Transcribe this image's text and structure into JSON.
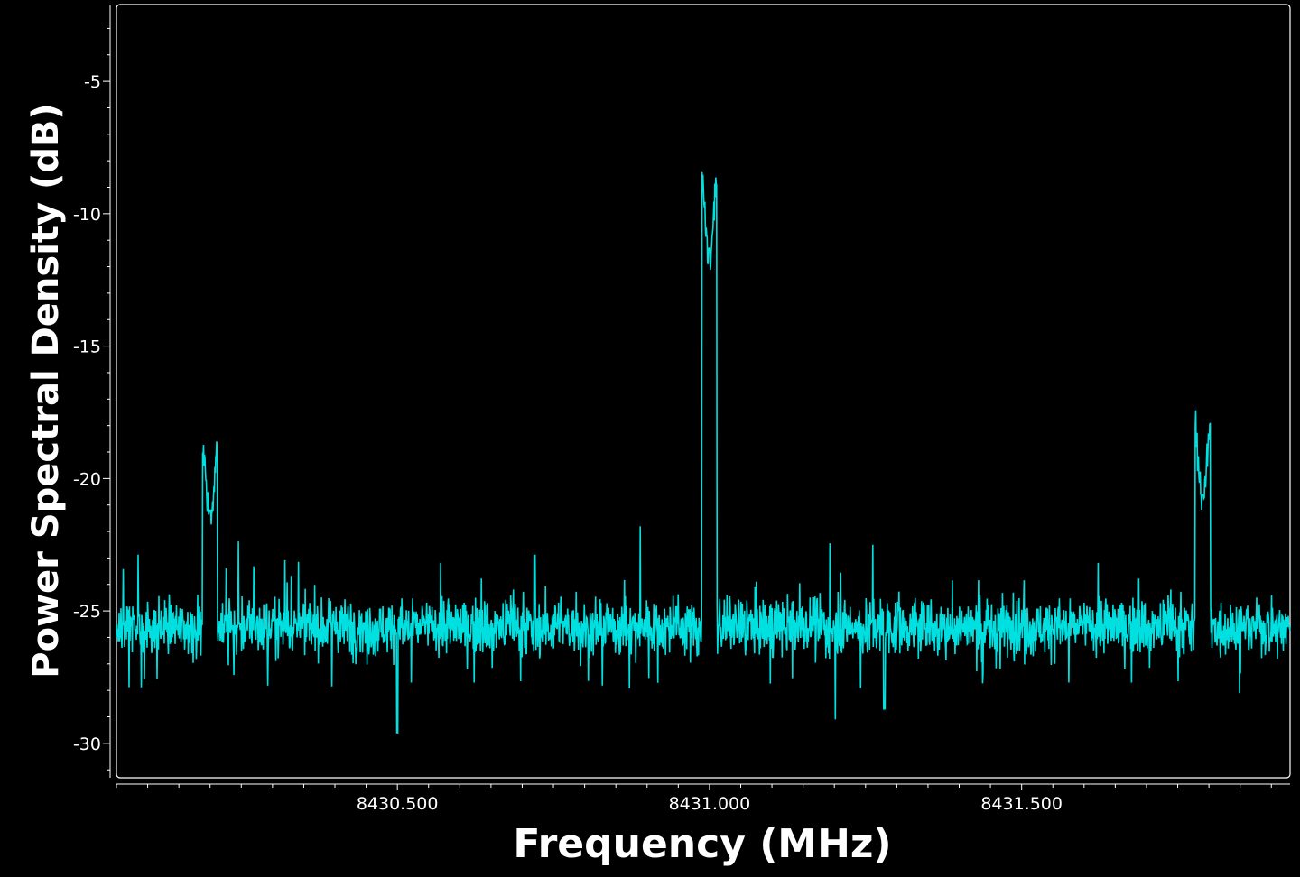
{
  "chart_data": {
    "type": "line",
    "title": "",
    "xlabel": "Frequency (MHz)",
    "ylabel": "Power Spectral Density (dB)",
    "xlim": [
      8430.05,
      8431.93
    ],
    "ylim": [
      -31.3,
      -2.1
    ],
    "x_ticks": [
      8430.5,
      8431.0,
      8431.5
    ],
    "x_tick_labels": [
      "8430.500",
      "8431.000",
      "8431.500"
    ],
    "y_ticks": [
      -30,
      -25,
      -20,
      -15,
      -10,
      -5
    ],
    "y_tick_labels": [
      "-30",
      "-25",
      "-20",
      "-15",
      "-10",
      "-5"
    ],
    "grid": false,
    "legend": "none",
    "background_color": "#000000",
    "axis_color": "#ffffff",
    "series": [
      {
        "color": "#00e0e0",
        "noise_floor_db": -25.6,
        "peaks": [
          {
            "x": 8430.2,
            "y": -21.2
          },
          {
            "x": 8430.72,
            "y": -22.9
          },
          {
            "x": 8430.99,
            "y": -22.6
          },
          {
            "x": 8431.0,
            "y": -11.3
          },
          {
            "x": 8431.79,
            "y": -20.6
          }
        ],
        "dips": [
          {
            "x": 8430.5,
            "y": -29.6
          },
          {
            "x": 8431.28,
            "y": -28.7
          }
        ]
      }
    ]
  }
}
